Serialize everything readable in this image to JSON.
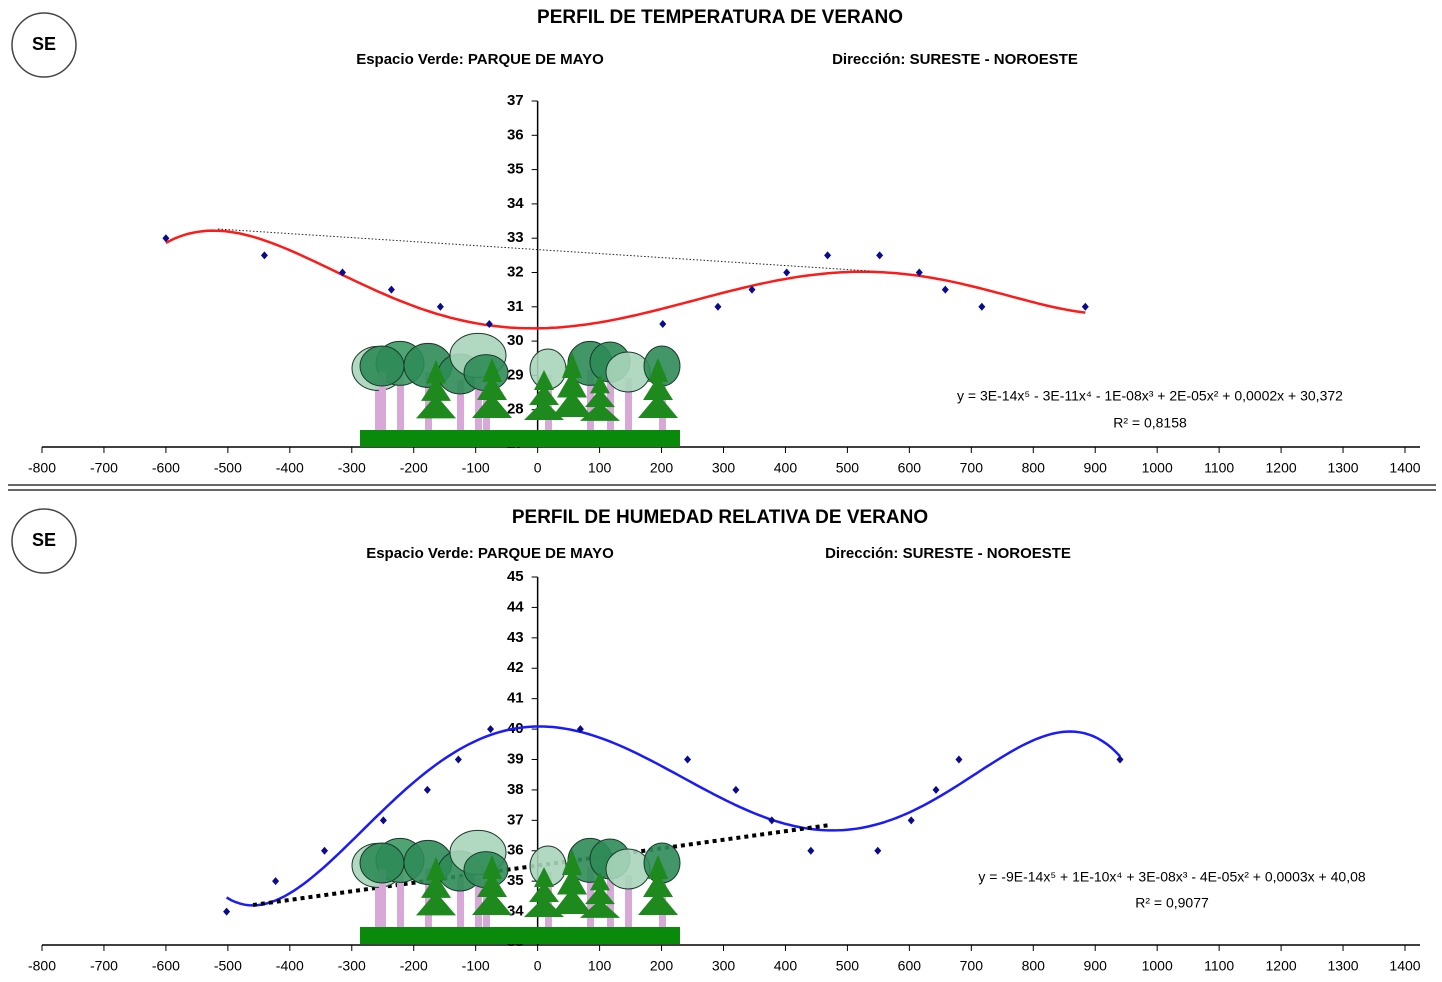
{
  "chart_data": [
    {
      "type": "scatter",
      "title": "PERFIL DE TEMPERATURA DE VERANO",
      "badge": "SE",
      "subtitle_left": "Espacio Verde: PARQUE DE MAYO",
      "subtitle_right": "Dirección: SURESTE - NOROESTE",
      "x": [
        -600,
        -441,
        -315,
        -236,
        -157,
        -78,
        202,
        291,
        346,
        402,
        468,
        552,
        616,
        658,
        717,
        884
      ],
      "values": [
        33,
        32.5,
        32,
        31.5,
        31,
        30.5,
        30.5,
        31,
        31.5,
        32,
        32.5,
        32.5,
        32,
        31.5,
        31,
        31
      ],
      "color": "#0a0a8c",
      "trend_color": "#ff1a1a",
      "xlim": [
        -800,
        1400
      ],
      "xticks": [
        -800,
        -700,
        -600,
        -500,
        -400,
        -300,
        -200,
        -100,
        0,
        100,
        200,
        300,
        400,
        500,
        600,
        700,
        800,
        900,
        1000,
        1100,
        1200,
        1300,
        1400
      ],
      "ylim": [
        27,
        37
      ],
      "yticks": [
        27,
        28,
        29,
        30,
        31,
        32,
        33,
        34,
        35,
        36,
        37
      ],
      "equation": "y = 3E-14x⁵ - 3E-11x⁴ - 1E-08x³ + 2E-05x² + 0,0002x + 30,372",
      "r_squared": "R² = 0,8158"
    },
    {
      "type": "scatter",
      "title": "PERFIL DE HUMEDAD RELATIVA DE VERANO",
      "badge": "SE",
      "subtitle_left": "Espacio Verde: PARQUE DE MAYO",
      "subtitle_right": "Dirección: SURESTE - NOROESTE",
      "x": [
        -502,
        -423,
        -344,
        -249,
        -178,
        -128,
        -76,
        69,
        242,
        320,
        378,
        441,
        549,
        603,
        643,
        680,
        940
      ],
      "values": [
        34,
        35,
        36,
        37,
        38,
        39,
        40,
        40,
        39,
        38,
        37,
        36,
        36,
        37,
        38,
        39,
        39
      ],
      "color": "#0a0a8c",
      "trend_color": "#1a1aff",
      "xlim": [
        -800,
        1400
      ],
      "xticks": [
        -800,
        -700,
        -600,
        -500,
        -400,
        -300,
        -200,
        -100,
        0,
        100,
        200,
        300,
        400,
        500,
        600,
        700,
        800,
        900,
        1000,
        1100,
        1200,
        1300,
        1400
      ],
      "ylim": [
        33,
        45
      ],
      "yticks": [
        33,
        34,
        35,
        36,
        37,
        38,
        39,
        40,
        41,
        42,
        43,
        44,
        45
      ],
      "equation": "y = -9E-14x⁵ + 1E-10x⁴ + 3E-08x³ - 4E-05x² + 0,0003x + 40,08",
      "r_squared": "R² = 0,9077"
    }
  ]
}
